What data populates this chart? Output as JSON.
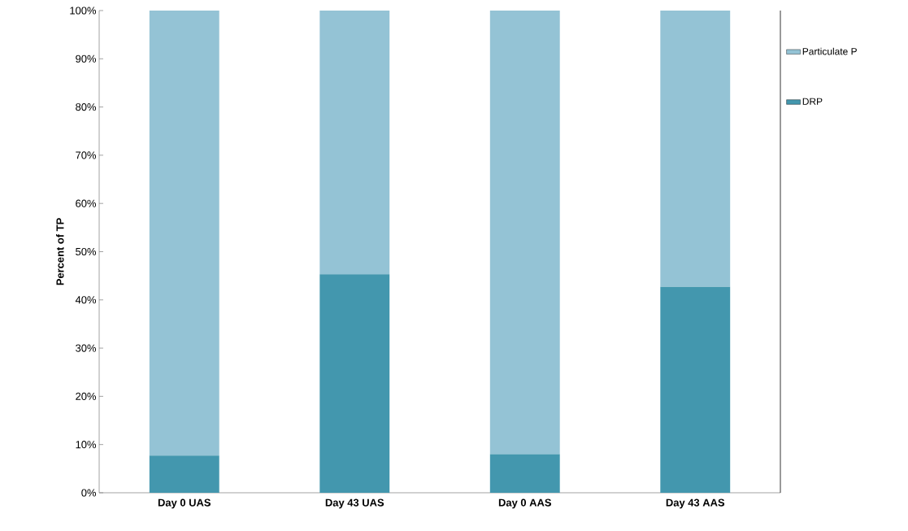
{
  "chart_data": {
    "type": "bar",
    "stacked": true,
    "ylabel": "Percent of TP",
    "categories": [
      "Day 0 UAS",
      "Day 43 UAS",
      "Day 0 AAS",
      "Day 43 AAS"
    ],
    "series": [
      {
        "name": "DRP",
        "color": "#4397ae",
        "values": [
          7.7,
          45.3,
          8.0,
          42.7
        ]
      },
      {
        "name": "Particulate P",
        "color": "#94c3d5",
        "values": [
          92.3,
          54.7,
          92.0,
          57.3
        ]
      }
    ],
    "ylim": [
      0,
      100
    ],
    "yticks": [
      {
        "value": 0,
        "label": "0%"
      },
      {
        "value": 10,
        "label": "10%"
      },
      {
        "value": 20,
        "label": "20%"
      },
      {
        "value": 30,
        "label": "30%"
      },
      {
        "value": 40,
        "label": "40%"
      },
      {
        "value": 50,
        "label": "50%"
      },
      {
        "value": 60,
        "label": "60%"
      },
      {
        "value": 70,
        "label": "70%"
      },
      {
        "value": 80,
        "label": "80%"
      },
      {
        "value": 90,
        "label": "90%"
      },
      {
        "value": 100,
        "label": "100%"
      }
    ],
    "grid": false,
    "legend": "top right"
  }
}
